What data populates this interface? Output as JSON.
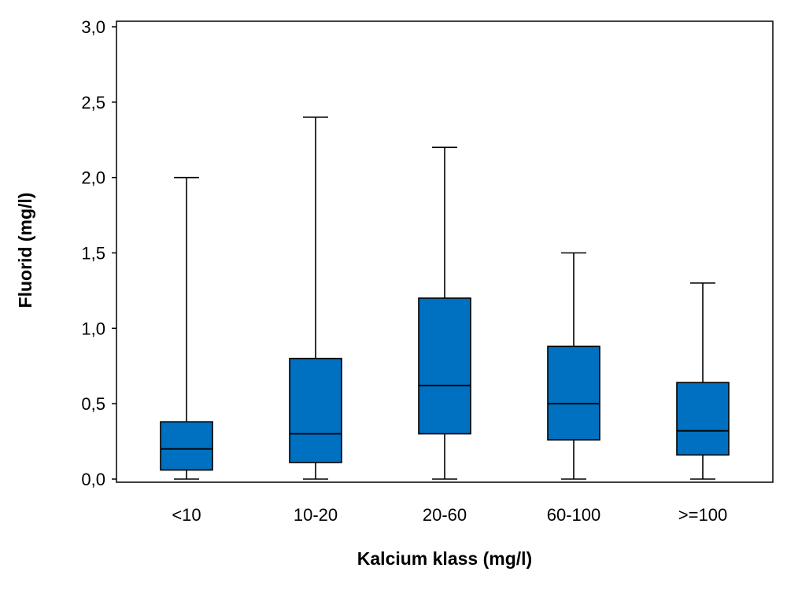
{
  "chart_data": {
    "type": "boxplot",
    "title": "",
    "xlabel": "Kalcium klass (mg/l)",
    "ylabel": "Fluorid (mg/l)",
    "ylim": [
      0,
      3.0
    ],
    "yticks": [
      "0,0",
      "0,5",
      "1,0",
      "1,5",
      "2,0",
      "2,5",
      "3,0"
    ],
    "categories": [
      "<10",
      "10-20",
      "20-60",
      "60-100",
      ">=100"
    ],
    "boxes": [
      {
        "category": "<10",
        "min": 0.0,
        "q1": 0.06,
        "median": 0.2,
        "q3": 0.38,
        "max": 2.0
      },
      {
        "category": "10-20",
        "min": 0.0,
        "q1": 0.11,
        "median": 0.3,
        "q3": 0.8,
        "max": 2.4
      },
      {
        "category": "20-60",
        "min": 0.0,
        "q1": 0.3,
        "median": 0.62,
        "q3": 1.2,
        "max": 2.2
      },
      {
        "category": "60-100",
        "min": 0.0,
        "q1": 0.26,
        "median": 0.5,
        "q3": 0.88,
        "max": 1.5
      },
      {
        "category": ">=100",
        "min": 0.0,
        "q1": 0.16,
        "median": 0.32,
        "q3": 0.64,
        "max": 1.3
      }
    ],
    "box_color": "#0070c0",
    "grid": false,
    "legend": "none"
  }
}
